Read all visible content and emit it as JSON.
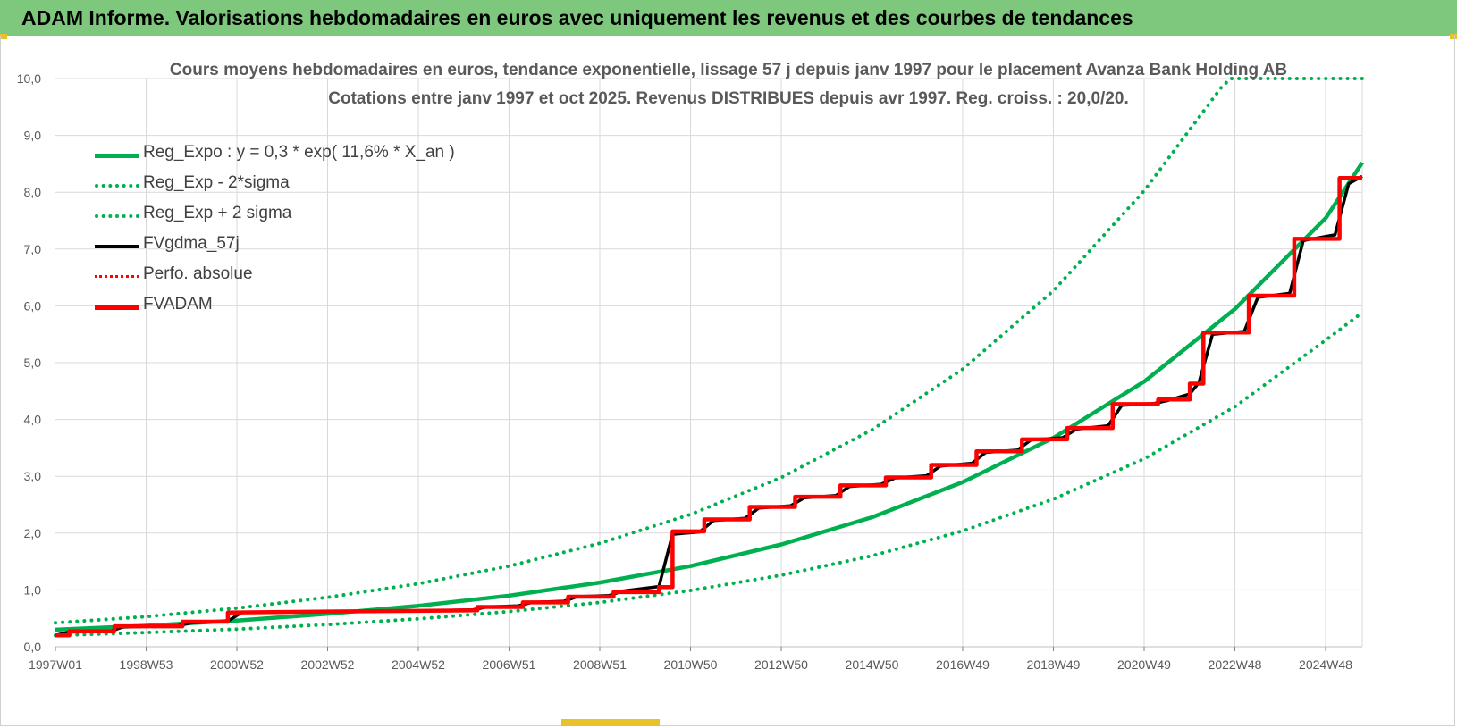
{
  "banner": {
    "title": "ADAM Informe. Valorisations hebdomadaires en euros avec uniquement les revenus et des courbes de tendances"
  },
  "colors": {
    "banner_bg": "#7dc87d",
    "trend": "#00b050",
    "gdma": "#000000",
    "fvadam": "#ff0000",
    "grid": "#d9d9d9",
    "axis_text": "#595959"
  },
  "chart_data": {
    "type": "line",
    "title": "Cours moyens hebdomadaires en euros, tendance exponentielle, lissage 57 j depuis janv 1997 pour le placement Avanza Bank Holding AB",
    "subtitle": "Cotations entre janv 1997 et oct 2025. Revenus DISTRIBUES depuis avr 1997. Reg. croiss. : 20,0/20.",
    "xlabel": "",
    "ylabel": "",
    "ylim": [
      0,
      10
    ],
    "xlim": [
      1997.0,
      2025.8
    ],
    "y_ticks": [
      "0,0",
      "1,0",
      "2,0",
      "3,0",
      "4,0",
      "5,0",
      "6,0",
      "7,0",
      "8,0",
      "9,0",
      "10,0"
    ],
    "x_tick_labels": [
      "1997W01",
      "1998W53",
      "2000W52",
      "2002W52",
      "2004W52",
      "2006W51",
      "2008W51",
      "2010W50",
      "2012W50",
      "2014W50",
      "2016W49",
      "2018W49",
      "2020W49",
      "2022W48",
      "2024W48"
    ],
    "legend": [
      "Reg_Expo : y = 0,3 * exp( 11,6% *  X_an )",
      "Reg_Exp - 2*sigma",
      "Reg_Exp + 2 sigma",
      "FVgdma_57j",
      "Perfo. absolue",
      "FVADAM"
    ],
    "series": [
      {
        "name": "Reg_Expo : y = 0,3 * exp( 11,6% *  X_an )",
        "style": "solid",
        "points": [
          [
            1997.0,
            0.3
          ],
          [
            1999.0,
            0.37
          ],
          [
            2001.0,
            0.46
          ],
          [
            2003.0,
            0.58
          ],
          [
            2005.0,
            0.72
          ],
          [
            2007.0,
            0.9
          ],
          [
            2009.0,
            1.13
          ],
          [
            2011.0,
            1.42
          ],
          [
            2013.0,
            1.8
          ],
          [
            2015.0,
            2.28
          ],
          [
            2017.0,
            2.9
          ],
          [
            2019.0,
            3.68
          ],
          [
            2021.0,
            4.67
          ],
          [
            2023.0,
            5.95
          ],
          [
            2025.0,
            7.55
          ],
          [
            2025.8,
            8.52
          ]
        ]
      },
      {
        "name": "Reg_Exp - 2*sigma",
        "style": "dotted",
        "points": [
          [
            1997.0,
            0.2
          ],
          [
            1999.0,
            0.25
          ],
          [
            2001.0,
            0.31
          ],
          [
            2003.0,
            0.39
          ],
          [
            2005.0,
            0.49
          ],
          [
            2007.0,
            0.62
          ],
          [
            2009.0,
            0.78
          ],
          [
            2011.0,
            0.99
          ],
          [
            2013.0,
            1.26
          ],
          [
            2015.0,
            1.6
          ],
          [
            2017.0,
            2.04
          ],
          [
            2019.0,
            2.6
          ],
          [
            2021.0,
            3.31
          ],
          [
            2023.0,
            4.23
          ],
          [
            2025.0,
            5.4
          ],
          [
            2025.8,
            5.88
          ]
        ]
      },
      {
        "name": "Reg_Exp + 2 sigma",
        "style": "dotted",
        "points": [
          [
            1997.0,
            0.42
          ],
          [
            1999.0,
            0.53
          ],
          [
            2001.0,
            0.68
          ],
          [
            2003.0,
            0.87
          ],
          [
            2005.0,
            1.11
          ],
          [
            2007.0,
            1.42
          ],
          [
            2009.0,
            1.82
          ],
          [
            2011.0,
            2.33
          ],
          [
            2013.0,
            2.98
          ],
          [
            2015.0,
            3.82
          ],
          [
            2017.0,
            4.89
          ],
          [
            2019.0,
            6.27
          ],
          [
            2021.0,
            8.03
          ],
          [
            2022.7,
            9.85
          ],
          [
            2022.9,
            10.0
          ],
          [
            2025.8,
            10.0
          ]
        ]
      },
      {
        "name": "FVgdma_57j",
        "style": "solid",
        "points": [
          [
            1997.0,
            0.2
          ],
          [
            1997.3,
            0.26
          ],
          [
            1998.2,
            0.27
          ],
          [
            1998.5,
            0.35
          ],
          [
            1999.7,
            0.37
          ],
          [
            2000.0,
            0.42
          ],
          [
            2000.8,
            0.45
          ],
          [
            2001.1,
            0.6
          ],
          [
            2003.0,
            0.62
          ],
          [
            2005.0,
            0.63
          ],
          [
            2006.2,
            0.65
          ],
          [
            2006.5,
            0.7
          ],
          [
            2007.2,
            0.72
          ],
          [
            2007.5,
            0.78
          ],
          [
            2008.2,
            0.8
          ],
          [
            2008.5,
            0.88
          ],
          [
            2009.2,
            0.9
          ],
          [
            2009.5,
            0.98
          ],
          [
            2010.3,
            1.06
          ],
          [
            2010.6,
            1.98
          ],
          [
            2011.2,
            2.02
          ],
          [
            2011.5,
            2.22
          ],
          [
            2012.2,
            2.26
          ],
          [
            2012.5,
            2.44
          ],
          [
            2013.2,
            2.48
          ],
          [
            2013.5,
            2.62
          ],
          [
            2014.2,
            2.66
          ],
          [
            2014.5,
            2.82
          ],
          [
            2015.2,
            2.86
          ],
          [
            2015.5,
            2.97
          ],
          [
            2016.2,
            3.01
          ],
          [
            2016.5,
            3.18
          ],
          [
            2017.2,
            3.23
          ],
          [
            2017.5,
            3.42
          ],
          [
            2018.2,
            3.46
          ],
          [
            2018.5,
            3.64
          ],
          [
            2019.2,
            3.68
          ],
          [
            2019.5,
            3.83
          ],
          [
            2020.2,
            3.89
          ],
          [
            2020.5,
            4.25
          ],
          [
            2021.2,
            4.28
          ],
          [
            2021.5,
            4.33
          ],
          [
            2022.0,
            4.45
          ],
          [
            2022.2,
            4.65
          ],
          [
            2022.5,
            5.5
          ],
          [
            2023.2,
            5.55
          ],
          [
            2023.5,
            6.15
          ],
          [
            2024.2,
            6.22
          ],
          [
            2024.5,
            7.15
          ],
          [
            2025.2,
            7.25
          ],
          [
            2025.5,
            8.15
          ],
          [
            2025.8,
            8.28
          ]
        ]
      },
      {
        "name": "FVADAM",
        "style": "solid",
        "points": [
          [
            1997.0,
            0.2
          ],
          [
            1997.3,
            0.2
          ],
          [
            1997.3,
            0.27
          ],
          [
            1998.3,
            0.27
          ],
          [
            1998.3,
            0.36
          ],
          [
            1999.8,
            0.36
          ],
          [
            1999.8,
            0.44
          ],
          [
            2000.8,
            0.44
          ],
          [
            2000.8,
            0.6
          ],
          [
            2003.0,
            0.62
          ],
          [
            2005.0,
            0.63
          ],
          [
            2006.3,
            0.64
          ],
          [
            2006.3,
            0.7
          ],
          [
            2007.3,
            0.7
          ],
          [
            2007.3,
            0.78
          ],
          [
            2008.3,
            0.78
          ],
          [
            2008.3,
            0.88
          ],
          [
            2009.3,
            0.88
          ],
          [
            2009.3,
            0.96
          ],
          [
            2010.3,
            0.96
          ],
          [
            2010.3,
            1.05
          ],
          [
            2010.6,
            1.05
          ],
          [
            2010.6,
            2.03
          ],
          [
            2011.3,
            2.03
          ],
          [
            2011.3,
            2.24
          ],
          [
            2012.3,
            2.24
          ],
          [
            2012.3,
            2.46
          ],
          [
            2013.3,
            2.46
          ],
          [
            2013.3,
            2.64
          ],
          [
            2014.3,
            2.64
          ],
          [
            2014.3,
            2.84
          ],
          [
            2015.3,
            2.84
          ],
          [
            2015.3,
            2.98
          ],
          [
            2016.3,
            2.98
          ],
          [
            2016.3,
            3.2
          ],
          [
            2017.3,
            3.2
          ],
          [
            2017.3,
            3.44
          ],
          [
            2018.3,
            3.44
          ],
          [
            2018.3,
            3.65
          ],
          [
            2019.3,
            3.65
          ],
          [
            2019.3,
            3.85
          ],
          [
            2020.3,
            3.85
          ],
          [
            2020.3,
            4.27
          ],
          [
            2021.3,
            4.27
          ],
          [
            2021.3,
            4.35
          ],
          [
            2022.0,
            4.35
          ],
          [
            2022.0,
            4.63
          ],
          [
            2022.3,
            4.63
          ],
          [
            2022.3,
            5.53
          ],
          [
            2023.3,
            5.53
          ],
          [
            2023.3,
            6.18
          ],
          [
            2024.3,
            6.18
          ],
          [
            2024.3,
            7.18
          ],
          [
            2025.3,
            7.18
          ],
          [
            2025.3,
            8.25
          ],
          [
            2025.8,
            8.25
          ]
        ]
      }
    ]
  }
}
